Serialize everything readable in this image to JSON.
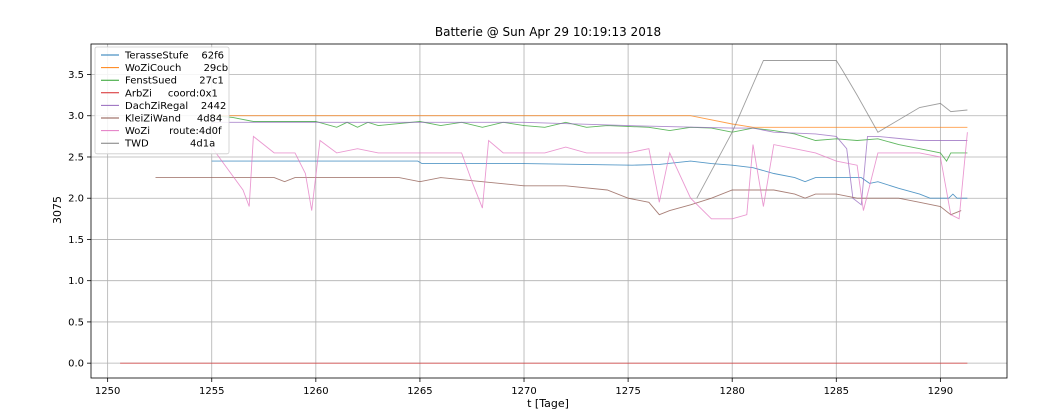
{
  "chart_data": {
    "type": "line",
    "title": "Batterie @ Sun Apr 29 10:19:13 2018",
    "xlabel": "t [Tage]",
    "ylabel": "3075",
    "xlim": [
      1249.2,
      1293.2
    ],
    "ylim": [
      -0.18,
      3.87
    ],
    "xticks": [
      1250,
      1255,
      1260,
      1265,
      1270,
      1275,
      1280,
      1285,
      1290
    ],
    "yticks": [
      0.0,
      0.5,
      1.0,
      1.5,
      2.0,
      2.5,
      3.0,
      3.5
    ],
    "ytick_labels": [
      "0.0",
      "0.5",
      "1.0",
      "1.5",
      "2.0",
      "2.5",
      "3.0",
      "3.5"
    ],
    "grid": true,
    "legend_position": "top-left",
    "series": [
      {
        "name": "TerasseStufe    62f6",
        "color": "#1f77b4",
        "points": [
          [
            1255,
            2.45
          ],
          [
            1264.9,
            2.45
          ],
          [
            1265.1,
            2.42
          ],
          [
            1268,
            2.42
          ],
          [
            1270,
            2.42
          ],
          [
            1275.2,
            2.4
          ],
          [
            1276.5,
            2.41
          ],
          [
            1278,
            2.45
          ],
          [
            1279,
            2.42
          ],
          [
            1280,
            2.4
          ],
          [
            1281,
            2.37
          ],
          [
            1282,
            2.3
          ],
          [
            1283,
            2.25
          ],
          [
            1283.5,
            2.2
          ],
          [
            1284,
            2.25
          ],
          [
            1286.2,
            2.25
          ],
          [
            1286.6,
            2.18
          ],
          [
            1287,
            2.2
          ],
          [
            1288,
            2.12
          ],
          [
            1289,
            2.05
          ],
          [
            1289.5,
            2.0
          ],
          [
            1290.4,
            2.0
          ],
          [
            1290.6,
            2.05
          ],
          [
            1290.8,
            2.0
          ],
          [
            1291.3,
            2.0
          ]
        ]
      },
      {
        "name": "WoZiCouch       29cb",
        "color": "#ff7f0e",
        "points": [
          [
            1255,
            3.0
          ],
          [
            1278,
            3.0
          ],
          [
            1280,
            2.9
          ],
          [
            1281,
            2.86
          ],
          [
            1291.3,
            2.86
          ]
        ]
      },
      {
        "name": "FenstSued       27c1",
        "color": "#2ca02c",
        "points": [
          [
            1255,
            3.0
          ],
          [
            1256,
            2.98
          ],
          [
            1257,
            2.93
          ],
          [
            1260,
            2.93
          ],
          [
            1261,
            2.86
          ],
          [
            1261.5,
            2.92
          ],
          [
            1262,
            2.86
          ],
          [
            1262.5,
            2.92
          ],
          [
            1263,
            2.88
          ],
          [
            1265,
            2.93
          ],
          [
            1266,
            2.88
          ],
          [
            1267,
            2.92
          ],
          [
            1268,
            2.86
          ],
          [
            1269,
            2.92
          ],
          [
            1270,
            2.88
          ],
          [
            1271,
            2.86
          ],
          [
            1272,
            2.92
          ],
          [
            1273,
            2.86
          ],
          [
            1274,
            2.88
          ],
          [
            1276,
            2.86
          ],
          [
            1277,
            2.82
          ],
          [
            1278,
            2.86
          ],
          [
            1279,
            2.85
          ],
          [
            1280,
            2.8
          ],
          [
            1281,
            2.85
          ],
          [
            1282,
            2.82
          ],
          [
            1283,
            2.78
          ],
          [
            1284,
            2.7
          ],
          [
            1285,
            2.72
          ],
          [
            1286,
            2.7
          ],
          [
            1287,
            2.72
          ],
          [
            1288,
            2.65
          ],
          [
            1289,
            2.6
          ],
          [
            1290,
            2.55
          ],
          [
            1290.3,
            2.45
          ],
          [
            1290.5,
            2.55
          ],
          [
            1291.3,
            2.55
          ]
        ]
      },
      {
        "name": "ArbZi     coord:0x1",
        "color": "#d62728",
        "points": [
          [
            1250.6,
            0.0
          ],
          [
            1291.3,
            0.0
          ]
        ]
      },
      {
        "name": "DachZiRegal    2442",
        "color": "#9467bd",
        "points": [
          [
            1255,
            2.92
          ],
          [
            1256,
            2.92
          ],
          [
            1257,
            2.92
          ],
          [
            1262,
            2.92
          ],
          [
            1265,
            2.92
          ],
          [
            1270,
            2.92
          ],
          [
            1275,
            2.88
          ],
          [
            1280,
            2.85
          ],
          [
            1281,
            2.85
          ],
          [
            1282,
            2.8
          ],
          [
            1284,
            2.78
          ],
          [
            1285,
            2.75
          ],
          [
            1285.5,
            2.6
          ],
          [
            1285.8,
            2.0
          ],
          [
            1286.2,
            1.92
          ],
          [
            1286.5,
            2.75
          ],
          [
            1287,
            2.75
          ],
          [
            1289,
            2.7
          ],
          [
            1291.3,
            2.7
          ]
        ]
      },
      {
        "name": "KleiZiWand     4d84",
        "color": "#8c564b",
        "points": [
          [
            1252.3,
            2.25
          ],
          [
            1257,
            2.25
          ],
          [
            1258,
            2.25
          ],
          [
            1258.5,
            2.2
          ],
          [
            1259,
            2.25
          ],
          [
            1264,
            2.25
          ],
          [
            1265,
            2.2
          ],
          [
            1266,
            2.25
          ],
          [
            1268,
            2.2
          ],
          [
            1270,
            2.15
          ],
          [
            1272,
            2.15
          ],
          [
            1274,
            2.1
          ],
          [
            1275,
            2.0
          ],
          [
            1276,
            1.95
          ],
          [
            1276.5,
            1.8
          ],
          [
            1277,
            1.85
          ],
          [
            1278,
            1.92
          ],
          [
            1279,
            2.0
          ],
          [
            1280,
            2.1
          ],
          [
            1281,
            2.1
          ],
          [
            1282,
            2.1
          ],
          [
            1283,
            2.05
          ],
          [
            1283.5,
            2.0
          ],
          [
            1284,
            2.05
          ],
          [
            1285,
            2.05
          ],
          [
            1286,
            2.0
          ],
          [
            1287,
            2.0
          ],
          [
            1288,
            2.0
          ],
          [
            1289,
            1.95
          ],
          [
            1290,
            1.9
          ],
          [
            1290.5,
            1.8
          ],
          [
            1291,
            1.85
          ]
        ]
      },
      {
        "name": "WoZi      route:4d0f",
        "color": "#e377c2",
        "points": [
          [
            1255,
            2.62
          ],
          [
            1256.5,
            2.1
          ],
          [
            1256.8,
            1.9
          ],
          [
            1257,
            2.75
          ],
          [
            1258,
            2.55
          ],
          [
            1259,
            2.55
          ],
          [
            1259.5,
            2.3
          ],
          [
            1259.8,
            1.85
          ],
          [
            1260.2,
            2.7
          ],
          [
            1261,
            2.55
          ],
          [
            1262,
            2.6
          ],
          [
            1263,
            2.55
          ],
          [
            1264,
            2.55
          ],
          [
            1265,
            2.55
          ],
          [
            1266,
            2.55
          ],
          [
            1267,
            2.55
          ],
          [
            1267.5,
            2.2
          ],
          [
            1268,
            1.88
          ],
          [
            1268.3,
            2.7
          ],
          [
            1269,
            2.55
          ],
          [
            1270,
            2.55
          ],
          [
            1271,
            2.55
          ],
          [
            1272,
            2.62
          ],
          [
            1273,
            2.55
          ],
          [
            1274,
            2.55
          ],
          [
            1275,
            2.55
          ],
          [
            1276,
            2.6
          ],
          [
            1276.5,
            1.95
          ],
          [
            1277,
            2.55
          ],
          [
            1278,
            2.0
          ],
          [
            1279,
            1.75
          ],
          [
            1280,
            1.75
          ],
          [
            1280.7,
            1.8
          ],
          [
            1281,
            2.65
          ],
          [
            1281.5,
            1.9
          ],
          [
            1282,
            2.65
          ],
          [
            1283,
            2.6
          ],
          [
            1284,
            2.55
          ],
          [
            1285,
            2.45
          ],
          [
            1286,
            2.4
          ],
          [
            1286.3,
            1.85
          ],
          [
            1287,
            2.55
          ],
          [
            1288,
            2.55
          ],
          [
            1289,
            2.55
          ],
          [
            1290,
            2.5
          ],
          [
            1290.5,
            1.8
          ],
          [
            1290.9,
            1.75
          ],
          [
            1291.3,
            2.8
          ]
        ]
      },
      {
        "name": "TWD             4d1a",
        "color": "#7f7f7f",
        "points": [
          [
            1278.3,
            2.0
          ],
          [
            1280,
            2.8
          ],
          [
            1281.5,
            3.67
          ],
          [
            1285,
            3.67
          ],
          [
            1285.3,
            3.55
          ],
          [
            1286,
            3.25
          ],
          [
            1287,
            2.8
          ],
          [
            1289,
            3.1
          ],
          [
            1290,
            3.15
          ],
          [
            1290.5,
            3.05
          ],
          [
            1291.3,
            3.07
          ]
        ]
      }
    ]
  }
}
